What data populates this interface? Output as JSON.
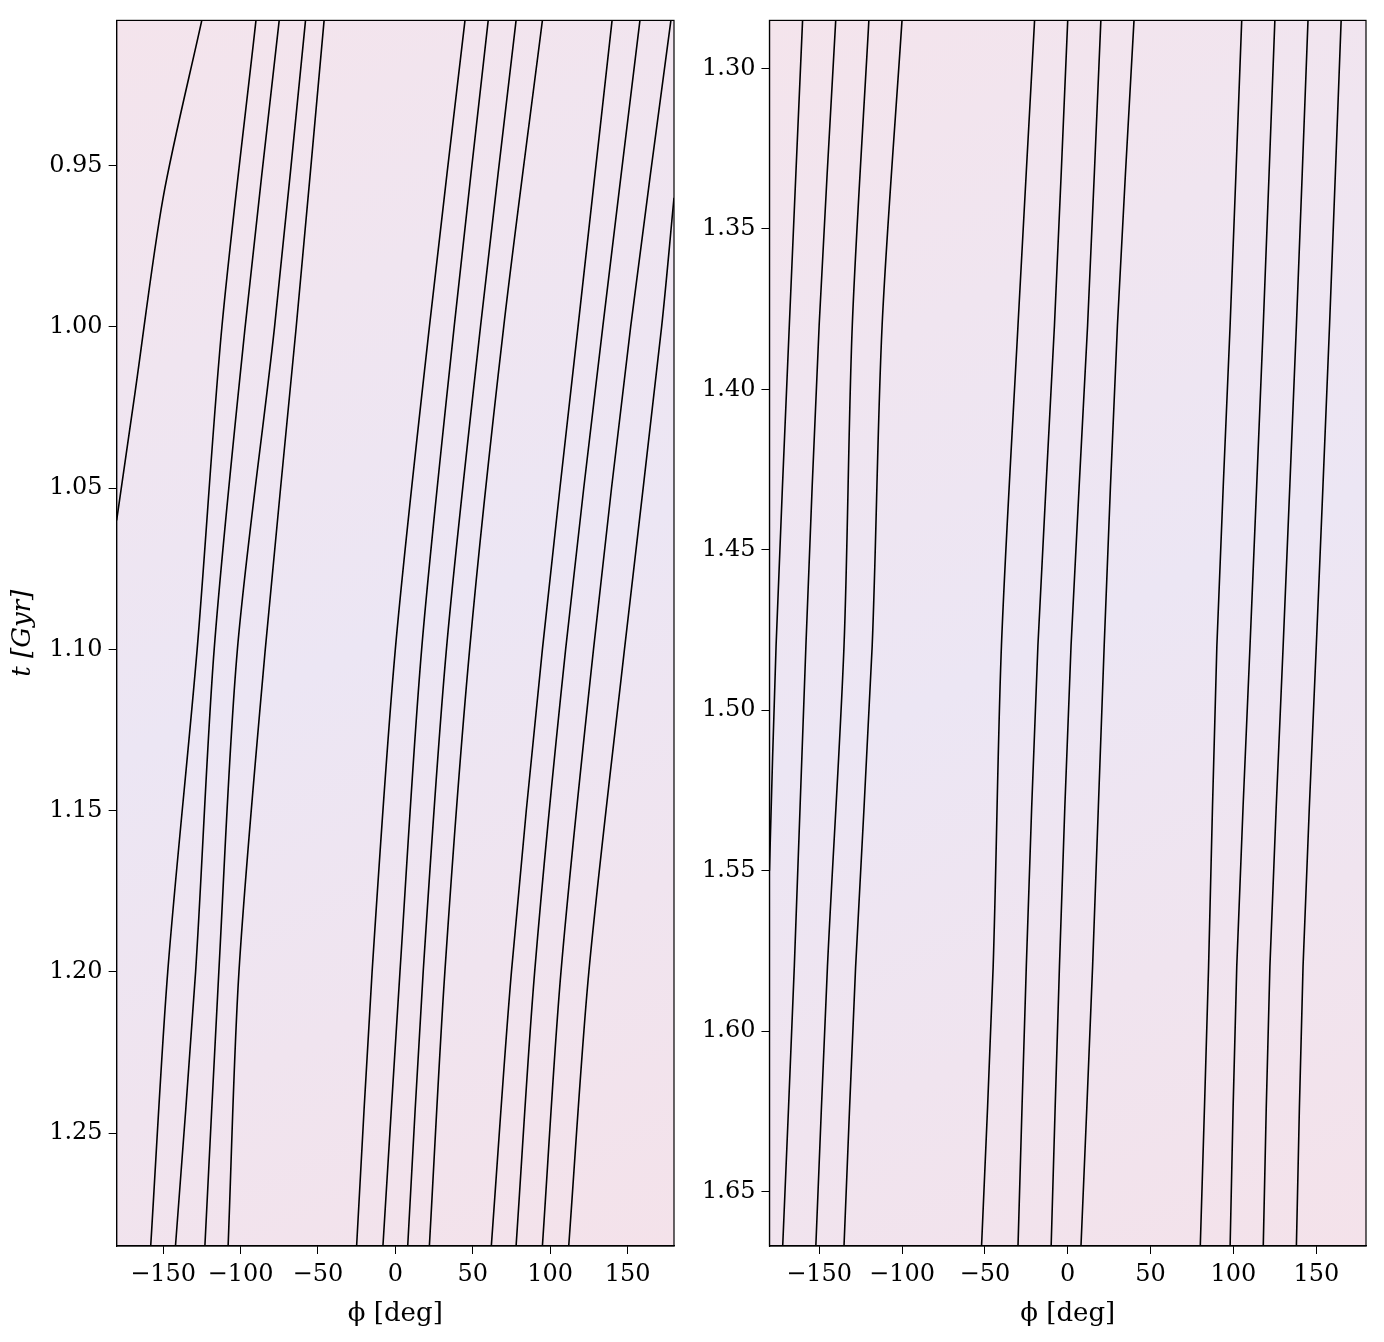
{
  "chart_data": [
    {
      "type": "line",
      "x_label": "ϕ [deg]",
      "y_label": "t [Gyr]",
      "xlim": [
        -180,
        180
      ],
      "xticks": [
        {
          "value": -150,
          "label": "−150"
        },
        {
          "value": -100,
          "label": "−100"
        },
        {
          "value": -50,
          "label": "−50"
        },
        0,
        50,
        100,
        150
      ],
      "ylim": [
        1.285,
        0.905
      ],
      "yticks": [
        0.95,
        {
          "value": 1.0,
          "label": "1.00"
        },
        1.05,
        {
          "value": 1.1,
          "label": "1.10"
        },
        1.15,
        {
          "value": 1.2,
          "label": "1.20"
        },
        1.25
      ],
      "grid": false,
      "series": [
        {
          "color": "#000000",
          "x": [
            -125,
            -150,
            -168,
            -180
          ],
          "values": [
            0.905,
            0.96,
            1.02,
            1.06
          ]
        },
        {
          "color": "#000000",
          "x": [
            -90,
            -112,
            -128,
            -147,
            -158
          ],
          "values": [
            0.905,
            1.0,
            1.1,
            1.2,
            1.285
          ]
        },
        {
          "color": "#000000",
          "x": [
            -75,
            -97,
            -117,
            -129,
            -142
          ],
          "values": [
            0.905,
            1.0,
            1.1,
            1.2,
            1.285
          ]
        },
        {
          "color": "#000000",
          "x": [
            -58,
            -78,
            -102,
            -114,
            -123
          ],
          "values": [
            0.905,
            1.0,
            1.1,
            1.2,
            1.285
          ]
        },
        {
          "color": "#000000",
          "x": [
            -46,
            -64,
            -84,
            -101,
            -108
          ],
          "values": [
            0.905,
            1.0,
            1.1,
            1.2,
            1.285
          ]
        },
        {
          "color": "#000000",
          "x": [
            45,
            22,
            0,
            -15,
            -25
          ],
          "values": [
            0.905,
            1.0,
            1.1,
            1.2,
            1.285
          ]
        },
        {
          "color": "#000000",
          "x": [
            60,
            38,
            17,
            3,
            -8
          ],
          "values": [
            0.905,
            1.0,
            1.1,
            1.2,
            1.285
          ]
        },
        {
          "color": "#000000",
          "x": [
            78,
            55,
            33,
            18,
            8
          ],
          "values": [
            0.905,
            1.0,
            1.1,
            1.2,
            1.285
          ]
        },
        {
          "color": "#000000",
          "x": [
            95,
            70,
            48,
            32,
            22
          ],
          "values": [
            0.905,
            1.0,
            1.1,
            1.2,
            1.285
          ]
        },
        {
          "color": "#000000",
          "x": [
            140,
            118,
            95,
            75,
            62
          ],
          "values": [
            0.905,
            1.0,
            1.1,
            1.2,
            1.285
          ]
        },
        {
          "color": "#000000",
          "x": [
            158,
            134,
            110,
            90,
            78
          ],
          "values": [
            0.905,
            1.0,
            1.1,
            1.2,
            1.285
          ]
        },
        {
          "color": "#000000",
          "x": [
            178,
            152,
            128,
            107,
            95
          ],
          "values": [
            0.905,
            1.0,
            1.1,
            1.2,
            1.285
          ]
        },
        {
          "color": "#000000",
          "x": [
            180,
            172,
            148,
            125,
            112
          ],
          "values": [
            0.96,
            1.0,
            1.1,
            1.2,
            1.285
          ]
        }
      ]
    },
    {
      "type": "line",
      "x_label": "ϕ [deg]",
      "xlim": [
        -180,
        180
      ],
      "xticks": [
        {
          "value": -150,
          "label": "−150"
        },
        {
          "value": -100,
          "label": "−100"
        },
        {
          "value": -50,
          "label": "−50"
        },
        0,
        50,
        100,
        150
      ],
      "ylim": [
        1.667,
        1.285
      ],
      "yticks": [
        {
          "value": 1.3,
          "label": "1.30"
        },
        1.35,
        {
          "value": 1.4,
          "label": "1.40"
        },
        1.45,
        {
          "value": 1.5,
          "label": "1.50"
        },
        1.55,
        {
          "value": 1.6,
          "label": "1.60"
        },
        1.65
      ],
      "grid": false,
      "series": [
        {
          "color": "#000000",
          "x": [
            -160,
            -168,
            -176,
            -180
          ],
          "values": [
            1.285,
            1.38,
            1.48,
            1.55
          ]
        },
        {
          "color": "#000000",
          "x": [
            -140,
            -150,
            -158,
            -165,
            -172
          ],
          "values": [
            1.285,
            1.38,
            1.48,
            1.58,
            1.667
          ]
        },
        {
          "color": "#000000",
          "x": [
            -120,
            -130,
            -135,
            -145,
            -152
          ],
          "values": [
            1.285,
            1.38,
            1.48,
            1.58,
            1.667
          ]
        },
        {
          "color": "#000000",
          "x": [
            -100,
            -112,
            -118,
            -128,
            -135
          ],
          "values": [
            1.285,
            1.38,
            1.48,
            1.58,
            1.667
          ]
        },
        {
          "color": "#000000",
          "x": [
            -20,
            -30,
            -40,
            -45,
            -52
          ],
          "values": [
            1.285,
            1.38,
            1.48,
            1.58,
            1.667
          ]
        },
        {
          "color": "#000000",
          "x": [
            0,
            -8,
            -18,
            -25,
            -30
          ],
          "values": [
            1.285,
            1.38,
            1.48,
            1.58,
            1.667
          ]
        },
        {
          "color": "#000000",
          "x": [
            20,
            12,
            2,
            -5,
            -10
          ],
          "values": [
            1.285,
            1.38,
            1.48,
            1.58,
            1.667
          ]
        },
        {
          "color": "#000000",
          "x": [
            40,
            30,
            22,
            15,
            8
          ],
          "values": [
            1.285,
            1.38,
            1.48,
            1.58,
            1.667
          ]
        },
        {
          "color": "#000000",
          "x": [
            105,
            98,
            90,
            85,
            80
          ],
          "values": [
            1.285,
            1.38,
            1.48,
            1.58,
            1.667
          ]
        },
        {
          "color": "#000000",
          "x": [
            125,
            118,
            110,
            102,
            98
          ],
          "values": [
            1.285,
            1.38,
            1.48,
            1.58,
            1.667
          ]
        },
        {
          "color": "#000000",
          "x": [
            145,
            138,
            130,
            122,
            118
          ],
          "values": [
            1.285,
            1.38,
            1.48,
            1.58,
            1.667
          ]
        },
        {
          "color": "#000000",
          "x": [
            165,
            158,
            150,
            142,
            138
          ],
          "values": [
            1.285,
            1.38,
            1.48,
            1.58,
            1.667
          ]
        }
      ]
    }
  ]
}
